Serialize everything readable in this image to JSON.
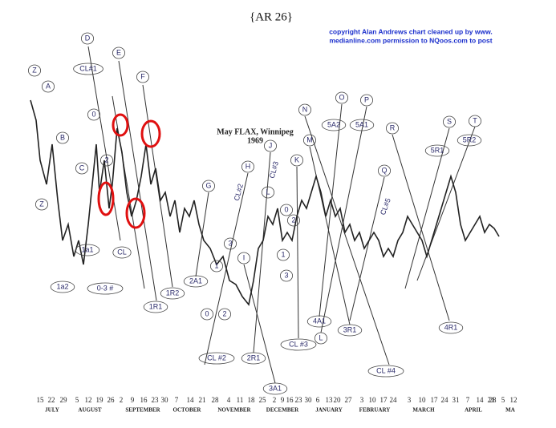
{
  "header": {
    "title": "{AR 26}",
    "credit": [
      "copyright Alan Andrews chart cleaned up by www.",
      "medianline.com permission to NQoos.com to post"
    ]
  },
  "chart": {
    "title": "May FLAX, Winnipeg",
    "year": "1969"
  },
  "axis": {
    "days": [
      "15",
      "22",
      "29",
      "5",
      "12",
      "19",
      "26",
      "2",
      "9",
      "16",
      "23",
      "30",
      "7",
      "14",
      "21",
      "28",
      "4",
      "11",
      "18",
      "25",
      "2",
      "9",
      "16",
      "23",
      "30",
      "6",
      "13",
      "20",
      "27",
      "3",
      "10",
      "17",
      "24",
      "3",
      "10",
      "17",
      "24",
      "31",
      "7",
      "14",
      "21",
      "28",
      "5",
      "12"
    ],
    "months": [
      "JULY",
      "AUGUST",
      "SEPTEMBER",
      "OCTOBER",
      "NOVEMBER",
      "DECEMBER",
      "JANUARY",
      "FEBRUARY",
      "MARCH",
      "APRIL",
      "MA"
    ]
  },
  "annotations": [
    "Z",
    "A",
    "B",
    "C",
    "D",
    "CL#1",
    "0",
    "2",
    "E",
    "F",
    "G",
    "H",
    "CL#2",
    "J",
    "CL#3",
    "K",
    "L",
    "0",
    "2",
    "3",
    "1",
    "I",
    "1",
    "3",
    "N",
    "O",
    "P",
    "M",
    "5A2",
    "5A1",
    "Q",
    "CL#5",
    "R",
    "S",
    "T",
    "5R1",
    "5R2",
    "Z",
    "1a1",
    "1a2",
    "0-3 #",
    "CL",
    "1R1",
    "1R2",
    "2A1",
    "0",
    "2",
    "CL #2",
    "2R1",
    "3A1",
    "CL #3",
    "4A1",
    "L",
    "3R1",
    "CL #4",
    "4R1"
  ]
}
